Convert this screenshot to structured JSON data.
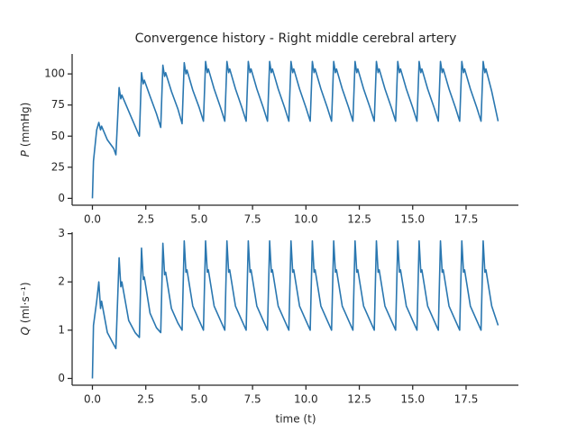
{
  "chart_data": [
    {
      "type": "line",
      "title": "Convergence history - Right middle cerebral artery",
      "ylabel": {
        "symbol": "P",
        "unit": "(mmHg)"
      },
      "x": [
        0,
        0.05,
        0.2,
        0.3,
        0.38,
        0.43,
        0.7,
        1.0,
        1.1,
        1.25,
        1.33,
        1.38,
        1.7,
        2.0,
        2.2,
        2.3,
        2.38,
        2.43,
        2.7,
        3.0,
        3.2,
        3.3,
        3.38,
        3.43,
        3.7,
        4.0,
        4.2,
        4.3,
        4.38,
        4.43,
        4.7,
        5.0,
        5.2,
        5.3,
        5.38,
        5.43,
        5.7,
        6.0,
        6.2,
        6.3,
        6.38,
        6.43,
        6.7,
        7.0,
        7.2,
        7.3,
        7.38,
        7.43,
        7.7,
        8.0,
        8.2,
        8.3,
        8.38,
        8.43,
        8.7,
        9.0,
        9.2,
        9.3,
        9.38,
        9.43,
        9.7,
        10.0,
        10.2,
        10.3,
        10.38,
        10.43,
        10.7,
        11.0,
        11.2,
        11.3,
        11.38,
        11.43,
        11.7,
        12.0,
        12.2,
        12.3,
        12.38,
        12.43,
        12.7,
        13.0,
        13.2,
        13.3,
        13.38,
        13.43,
        13.7,
        14.0,
        14.2,
        14.3,
        14.38,
        14.43,
        14.7,
        15.0,
        15.2,
        15.3,
        15.38,
        15.43,
        15.7,
        16.0,
        16.2,
        16.3,
        16.38,
        16.43,
        16.7,
        17.0,
        17.2,
        17.3,
        17.38,
        17.43,
        17.7,
        18.0,
        18.2,
        18.3,
        18.38,
        18.43,
        18.7,
        19.0
      ],
      "series": [
        {
          "color": "#2a77b0",
          "values": [
            0,
            30,
            55,
            61,
            55,
            58,
            47,
            40,
            35,
            89,
            80,
            83,
            70,
            58,
            50,
            101,
            92,
            95,
            82,
            68,
            57,
            107,
            98,
            101,
            86,
            72,
            60,
            109,
            100,
            103,
            87,
            73,
            62,
            110,
            101,
            104,
            88,
            73,
            62,
            110,
            101,
            104,
            88,
            73,
            62,
            110,
            101,
            104,
            88,
            73,
            62,
            110,
            101,
            104,
            88,
            73,
            62,
            110,
            101,
            104,
            88,
            73,
            62,
            110,
            101,
            104,
            88,
            73,
            62,
            110,
            101,
            104,
            88,
            73,
            62,
            110,
            101,
            104,
            88,
            73,
            62,
            110,
            101,
            104,
            88,
            73,
            62,
            110,
            101,
            104,
            88,
            73,
            62,
            110,
            101,
            104,
            88,
            73,
            62,
            110,
            101,
            104,
            88,
            73,
            62,
            110,
            101,
            104,
            88,
            73,
            62,
            110,
            101,
            104,
            86,
            62
          ]
        }
      ],
      "xlim": [
        -0.95,
        19.95
      ],
      "xticks": [
        {
          "value": 0,
          "label": "0.0"
        },
        {
          "value": 2.5,
          "label": "2.5"
        },
        {
          "value": 5,
          "label": "5.0"
        },
        {
          "value": 7.5,
          "label": "7.5"
        },
        {
          "value": 10,
          "label": "10.0"
        },
        {
          "value": 12.5,
          "label": "12.5"
        },
        {
          "value": 15,
          "label": "15.0"
        },
        {
          "value": 17.5,
          "label": "17.5"
        }
      ],
      "ylim": [
        -5.5,
        116
      ],
      "yticks": [
        0,
        25,
        50,
        75,
        100
      ]
    },
    {
      "type": "line",
      "xlabel": "time (t)",
      "ylabel": {
        "symbol": "Q",
        "unit": "(ml·s⁻¹)"
      },
      "x": [
        0,
        0.05,
        0.2,
        0.3,
        0.38,
        0.43,
        0.7,
        1.0,
        1.1,
        1.25,
        1.33,
        1.38,
        1.7,
        2.0,
        2.2,
        2.3,
        2.38,
        2.43,
        2.7,
        3.0,
        3.2,
        3.3,
        3.38,
        3.43,
        3.7,
        4.0,
        4.2,
        4.3,
        4.38,
        4.43,
        4.7,
        5.0,
        5.2,
        5.3,
        5.38,
        5.43,
        5.7,
        6.0,
        6.2,
        6.3,
        6.38,
        6.43,
        6.7,
        7.0,
        7.2,
        7.3,
        7.38,
        7.43,
        7.7,
        8.0,
        8.2,
        8.3,
        8.38,
        8.43,
        8.7,
        9.0,
        9.2,
        9.3,
        9.38,
        9.43,
        9.7,
        10.0,
        10.2,
        10.3,
        10.38,
        10.43,
        10.7,
        11.0,
        11.2,
        11.3,
        11.38,
        11.43,
        11.7,
        12.0,
        12.2,
        12.3,
        12.38,
        12.43,
        12.7,
        13.0,
        13.2,
        13.3,
        13.38,
        13.43,
        13.7,
        14.0,
        14.2,
        14.3,
        14.38,
        14.43,
        14.7,
        15.0,
        15.2,
        15.3,
        15.38,
        15.43,
        15.7,
        16.0,
        16.2,
        16.3,
        16.38,
        16.43,
        16.7,
        17.0,
        17.2,
        17.3,
        17.38,
        17.43,
        17.7,
        18.0,
        18.2,
        18.3,
        18.38,
        18.43,
        18.7,
        19.0
      ],
      "series": [
        {
          "color": "#2a77b0",
          "values": [
            0,
            1.1,
            1.6,
            2.0,
            1.45,
            1.6,
            0.95,
            0.7,
            0.62,
            2.5,
            1.9,
            2.0,
            1.2,
            0.95,
            0.85,
            2.7,
            2.05,
            2.1,
            1.35,
            1.05,
            0.95,
            2.8,
            2.15,
            2.2,
            1.45,
            1.15,
            1.0,
            2.85,
            2.2,
            2.25,
            1.5,
            1.2,
            1.0,
            2.85,
            2.2,
            2.25,
            1.5,
            1.2,
            1.0,
            2.85,
            2.2,
            2.25,
            1.5,
            1.2,
            1.0,
            2.85,
            2.2,
            2.25,
            1.5,
            1.2,
            1.0,
            2.85,
            2.2,
            2.25,
            1.5,
            1.2,
            1.0,
            2.85,
            2.2,
            2.25,
            1.5,
            1.2,
            1.0,
            2.85,
            2.2,
            2.25,
            1.5,
            1.2,
            1.0,
            2.85,
            2.2,
            2.25,
            1.5,
            1.2,
            1.0,
            2.85,
            2.2,
            2.25,
            1.5,
            1.2,
            1.0,
            2.85,
            2.2,
            2.25,
            1.5,
            1.2,
            1.0,
            2.85,
            2.2,
            2.25,
            1.5,
            1.2,
            1.0,
            2.85,
            2.2,
            2.25,
            1.5,
            1.2,
            1.0,
            2.85,
            2.2,
            2.25,
            1.5,
            1.2,
            1.0,
            2.85,
            2.2,
            2.25,
            1.5,
            1.2,
            1.0,
            2.85,
            2.2,
            2.25,
            1.5,
            1.1
          ]
        }
      ],
      "xlim": [
        -0.95,
        19.95
      ],
      "xticks": [
        {
          "value": 0,
          "label": "0.0"
        },
        {
          "value": 2.5,
          "label": "2.5"
        },
        {
          "value": 5,
          "label": "5.0"
        },
        {
          "value": 7.5,
          "label": "7.5"
        },
        {
          "value": 10,
          "label": "10.0"
        },
        {
          "value": 12.5,
          "label": "12.5"
        },
        {
          "value": 15,
          "label": "15.0"
        },
        {
          "value": 17.5,
          "label": "17.5"
        }
      ],
      "ylim": [
        -0.14,
        3.03
      ],
      "yticks": [
        0,
        1,
        2,
        3
      ]
    }
  ]
}
